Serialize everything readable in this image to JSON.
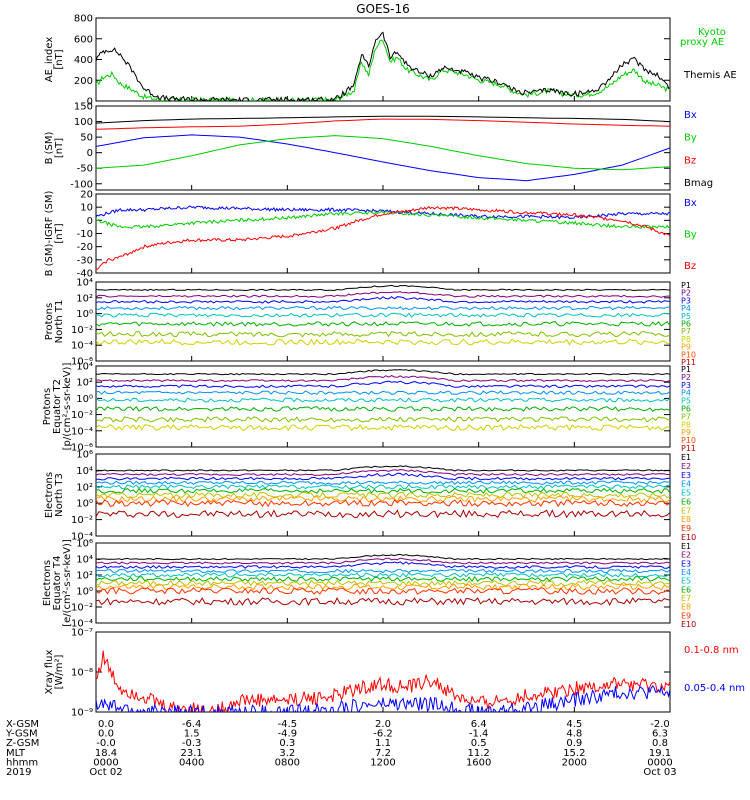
{
  "title": "GOES-16",
  "colors": {
    "black": "#000000",
    "red": "#ff0000",
    "green": "#00cc00",
    "blue": "#0000ff"
  },
  "chart_data": [
    {
      "type": "line",
      "ylabel": [
        "AE_index",
        "[nT]"
      ],
      "ylim": [
        0,
        800
      ],
      "yticks": [
        "0",
        "200",
        "400",
        "600",
        "800"
      ],
      "ytick_values": [
        0,
        200,
        400,
        600,
        800
      ],
      "series": [
        {
          "name": "Kyoto proxy AE",
          "legend": [
            "Kyoto",
            "proxy AE"
          ],
          "color": "#00cc00",
          "x": [
            0,
            0.3,
            0.7,
            1,
            1.5,
            2,
            2.5,
            3,
            4,
            6,
            8,
            10,
            10.8,
            11.1,
            11.4,
            11.7,
            12,
            12.3,
            12.6,
            13,
            13.5,
            14,
            14.5,
            15,
            15.5,
            16,
            16.5,
            17,
            17.5,
            18,
            18.5,
            19,
            19.5,
            20,
            20.5,
            21,
            21.5,
            22,
            22.5,
            23,
            23.5,
            24
          ],
          "values": [
            150,
            230,
            260,
            170,
            110,
            40,
            20,
            10,
            10,
            8,
            10,
            12,
            100,
            380,
            250,
            520,
            600,
            380,
            420,
            300,
            250,
            200,
            300,
            280,
            250,
            200,
            180,
            150,
            90,
            60,
            80,
            100,
            70,
            60,
            60,
            90,
            150,
            250,
            300,
            180,
            150,
            100
          ]
        },
        {
          "name": "Themis AE",
          "legend": [
            "Themis AE"
          ],
          "color": "#000000",
          "x": [
            0,
            0.3,
            0.7,
            1,
            1.5,
            2,
            2.5,
            3,
            4,
            6,
            8,
            10,
            10.8,
            11.1,
            11.4,
            11.7,
            12,
            12.3,
            12.6,
            13,
            13.5,
            14,
            14.5,
            15,
            15.5,
            16,
            16.5,
            17,
            17.5,
            18,
            18.5,
            19,
            19.5,
            20,
            20.5,
            21,
            21.5,
            22,
            22.5,
            23,
            23.5,
            24
          ],
          "values": [
            400,
            480,
            500,
            450,
            300,
            120,
            50,
            20,
            15,
            10,
            12,
            15,
            150,
            450,
            330,
            600,
            650,
            420,
            470,
            350,
            280,
            240,
            320,
            300,
            270,
            220,
            200,
            170,
            100,
            80,
            90,
            110,
            80,
            70,
            80,
            120,
            220,
            350,
            400,
            300,
            250,
            120
          ]
        }
      ]
    },
    {
      "type": "line",
      "ylabel": [
        "B (SM)",
        "[nT]"
      ],
      "ylim": [
        -120,
        150
      ],
      "yticks": [
        "-100",
        "-50",
        "0",
        "50",
        "100",
        "150"
      ],
      "ytick_values": [
        -100,
        -50,
        0,
        50,
        100,
        150
      ],
      "series": [
        {
          "name": "Bx",
          "legend": [
            "Bx"
          ],
          "color": "#0000ff",
          "x": [
            0,
            2,
            4,
            6,
            8,
            10,
            12,
            14,
            16,
            18,
            20,
            22,
            24
          ],
          "values": [
            20,
            48,
            57,
            50,
            28,
            0,
            -30,
            -58,
            -80,
            -90,
            -70,
            -40,
            15
          ]
        },
        {
          "name": "By",
          "legend": [
            "By"
          ],
          "color": "#00cc00",
          "x": [
            0,
            2,
            4,
            6,
            8,
            10,
            12,
            14,
            16,
            18,
            20,
            22,
            24
          ],
          "values": [
            -50,
            -40,
            -10,
            25,
            45,
            55,
            45,
            20,
            -10,
            -35,
            -50,
            -55,
            -45
          ]
        },
        {
          "name": "Bz",
          "legend": [
            "Bz"
          ],
          "color": "#ff0000",
          "x": [
            0,
            2,
            4,
            6,
            8,
            10,
            12,
            14,
            16,
            18,
            20,
            22,
            24
          ],
          "values": [
            75,
            80,
            83,
            85,
            92,
            102,
            108,
            107,
            103,
            98,
            92,
            88,
            85
          ]
        },
        {
          "name": "Bmag",
          "legend": [
            "Bmag"
          ],
          "color": "#000000",
          "x": [
            0,
            2,
            4,
            6,
            8,
            10,
            12,
            14,
            16,
            18,
            20,
            22,
            24
          ],
          "values": [
            95,
            103,
            108,
            110,
            112,
            115,
            117,
            117,
            115,
            112,
            110,
            107,
            100
          ]
        }
      ]
    },
    {
      "type": "line",
      "ylabel": [
        "B (SM)-IGRF (SM)",
        "[nT]"
      ],
      "ylim": [
        -40,
        20
      ],
      "yticks": [
        "-40",
        "-30",
        "-20",
        "-10",
        "0",
        "10",
        "20"
      ],
      "ytick_values": [
        -40,
        -30,
        -20,
        -10,
        0,
        10,
        20
      ],
      "series": [
        {
          "name": "Bx",
          "legend": [
            "Bx"
          ],
          "color": "#0000ff",
          "x": [
            0,
            1,
            2,
            4,
            6,
            8,
            10,
            12,
            14,
            16,
            18,
            20,
            22,
            24
          ],
          "values": [
            3,
            8,
            8,
            10,
            9,
            8,
            8,
            7,
            5,
            3,
            3,
            2,
            5,
            5
          ]
        },
        {
          "name": "By",
          "legend": [
            "By"
          ],
          "color": "#00cc00",
          "x": [
            0,
            1,
            2,
            4,
            6,
            8,
            10,
            12,
            14,
            16,
            18,
            20,
            22,
            24
          ],
          "values": [
            0,
            -5,
            -5,
            -2,
            0,
            2,
            5,
            6,
            4,
            2,
            0,
            -2,
            -5,
            -5
          ]
        },
        {
          "name": "Bz",
          "legend": [
            "Bz"
          ],
          "color": "#ff0000",
          "x": [
            0,
            0.5,
            1,
            2,
            3,
            4,
            6,
            8,
            10,
            11,
            12,
            13,
            14,
            16,
            18,
            20,
            22,
            23,
            24
          ],
          "values": [
            -38,
            -30,
            -28,
            -20,
            -17,
            -15,
            -15,
            -12,
            -6,
            0,
            5,
            7,
            10,
            8,
            6,
            4,
            0,
            -5,
            -12
          ]
        }
      ]
    },
    {
      "type": "line",
      "log": true,
      "ylabel": [
        "Protons",
        "North T1"
      ],
      "ylim": [
        -6,
        4
      ],
      "yticks": [
        "10⁴",
        "10²",
        "10⁰",
        "10⁻²",
        "10⁻⁴",
        "10⁻⁶"
      ],
      "ytick_values": [
        4,
        2,
        0,
        -2,
        -4,
        -6
      ],
      "legend": [
        "P1",
        "P2",
        "P3",
        "P4",
        "P5",
        "P6",
        "P7",
        "P8",
        "P9",
        "P10",
        "P11"
      ],
      "legend_colors": [
        "#000000",
        "#800080",
        "#0000ff",
        "#0090ff",
        "#00c0c0",
        "#00b000",
        "#80c000",
        "#d0d000",
        "#ffa000",
        "#ff5000",
        "#cc0000"
      ],
      "series_levels": [
        3.0,
        2.2,
        1.5,
        0.7,
        -0.2,
        -1.3,
        -2.6,
        -3.6
      ]
    },
    {
      "type": "line",
      "log": true,
      "ylabel": [
        "Protons",
        "Equator T2",
        "[p/(cm²-s-sr-keV)]"
      ],
      "ylim": [
        -6,
        4
      ],
      "yticks": [
        "10⁴",
        "10²",
        "10⁰",
        "10⁻²",
        "10⁻⁴",
        "10⁻⁶"
      ],
      "ytick_values": [
        4,
        2,
        0,
        -2,
        -4,
        -6
      ],
      "legend": [
        "P1",
        "P2",
        "P3",
        "P4",
        "P5",
        "P6",
        "P7",
        "P8",
        "P9",
        "P10",
        "P11"
      ],
      "legend_colors": [
        "#000000",
        "#800080",
        "#0000ff",
        "#0090ff",
        "#00c0c0",
        "#00b000",
        "#80c000",
        "#d0d000",
        "#ffa000",
        "#ff5000",
        "#cc0000"
      ],
      "series_levels": [
        3.0,
        2.2,
        1.5,
        0.7,
        -0.2,
        -1.3,
        -2.6,
        -3.6
      ]
    },
    {
      "type": "line",
      "log": true,
      "ylabel": [
        "Electrons",
        "North T3"
      ],
      "ylim": [
        -4,
        6
      ],
      "yticks": [
        "10⁶",
        "10⁴",
        "10²",
        "10⁰",
        "10⁻²",
        "10⁻⁴"
      ],
      "ytick_values": [
        6,
        4,
        2,
        0,
        -2,
        -4
      ],
      "legend": [
        "E1",
        "E2",
        "E3",
        "E4",
        "E5",
        "E6",
        "E7",
        "E8",
        "E9",
        "E10"
      ],
      "legend_colors": [
        "#000000",
        "#800080",
        "#0000ff",
        "#0090ff",
        "#00c0c0",
        "#00b000",
        "#c0c000",
        "#ffa000",
        "#ff3000",
        "#aa0000"
      ],
      "series_levels": [
        4.0,
        3.5,
        3.0,
        2.5,
        2.0,
        1.5,
        1.0,
        0.5,
        0.0,
        -1.3
      ]
    },
    {
      "type": "line",
      "log": true,
      "ylabel": [
        "Electrons",
        "Equator T4",
        "[e/(cm²-s-sr-keV)]"
      ],
      "ylim": [
        -4,
        6
      ],
      "yticks": [
        "10⁶",
        "10⁴",
        "10²",
        "10⁰",
        "10⁻²",
        "10⁻⁴"
      ],
      "ytick_values": [
        6,
        4,
        2,
        0,
        -2,
        -4
      ],
      "legend": [
        "E1",
        "E2",
        "E3",
        "E4",
        "E5",
        "E6",
        "E7",
        "E8",
        "E9",
        "E10"
      ],
      "legend_colors": [
        "#000000",
        "#800080",
        "#0000ff",
        "#0090ff",
        "#00c0c0",
        "#00b000",
        "#c0c000",
        "#ffa000",
        "#ff3000",
        "#aa0000"
      ],
      "series_levels": [
        4.0,
        3.5,
        3.0,
        2.5,
        2.0,
        1.5,
        1.0,
        0.5,
        0.0,
        -1.3
      ]
    },
    {
      "type": "line",
      "log": true,
      "ylabel": [
        "Xray flux",
        "[W/m²]"
      ],
      "ylim": [
        -9,
        -7
      ],
      "yticks": [
        "10⁻⁷",
        "10⁻⁸",
        "10⁻⁹"
      ],
      "ytick_values": [
        -7,
        -8,
        -9
      ],
      "series": [
        {
          "name": "0.1-0.8 nm",
          "legend": [
            "0.1-0.8 nm"
          ],
          "color": "#ff0000",
          "x": [
            0,
            0.3,
            0.6,
            1,
            2,
            3,
            4,
            5,
            6,
            8,
            10,
            11,
            12,
            13,
            14,
            15,
            16,
            18,
            20,
            22,
            24
          ],
          "values": [
            -8.2,
            -7.6,
            -8.0,
            -8.4,
            -8.6,
            -8.9,
            -8.9,
            -9.0,
            -8.7,
            -8.7,
            -8.6,
            -8.4,
            -8.3,
            -8.4,
            -8.2,
            -8.6,
            -8.8,
            -8.6,
            -8.4,
            -8.3,
            -8.4
          ]
        },
        {
          "name": "0.05-0.4 nm",
          "legend": [
            "0.05-0.4 nm"
          ],
          "color": "#0000ff",
          "x": [
            0,
            1,
            2,
            4,
            6,
            8,
            10,
            12,
            14,
            16,
            18,
            20,
            22,
            24
          ],
          "values": [
            -8.8,
            -8.9,
            -9.0,
            -9.0,
            -9.0,
            -9.0,
            -8.9,
            -8.8,
            -8.8,
            -9.0,
            -8.9,
            -8.7,
            -8.5,
            -8.5
          ]
        }
      ]
    }
  ],
  "x_axis": {
    "ticks_hours": [
      0,
      4,
      8,
      12,
      16,
      20,
      24
    ],
    "rows": [
      {
        "label": "X-GSM",
        "values": [
          "0.0",
          "-6.4",
          "-4.5",
          "2.0",
          "6.4",
          "4.5",
          "-2.0"
        ]
      },
      {
        "label": "Y-GSM",
        "values": [
          "0.0",
          "1.5",
          "-4.9",
          "-6.2",
          "-1.4",
          "4.8",
          "6.3"
        ]
      },
      {
        "label": "Z-GSM",
        "values": [
          "-0.0",
          "-0.3",
          "0.3",
          "1.1",
          "0.5",
          "0.9",
          "0.8"
        ]
      },
      {
        "label": "MLT",
        "values": [
          "18.4",
          "23.1",
          "3.2",
          "7.2",
          "11.2",
          "15.2",
          "19.1"
        ]
      },
      {
        "label": "hhmm",
        "values": [
          "0000",
          "0400",
          "0800",
          "1200",
          "1600",
          "2000",
          "0000"
        ]
      },
      {
        "label": "2019",
        "values": [
          "Oct 02",
          "",
          "",
          "",
          "",
          "",
          "Oct 03"
        ]
      }
    ]
  }
}
